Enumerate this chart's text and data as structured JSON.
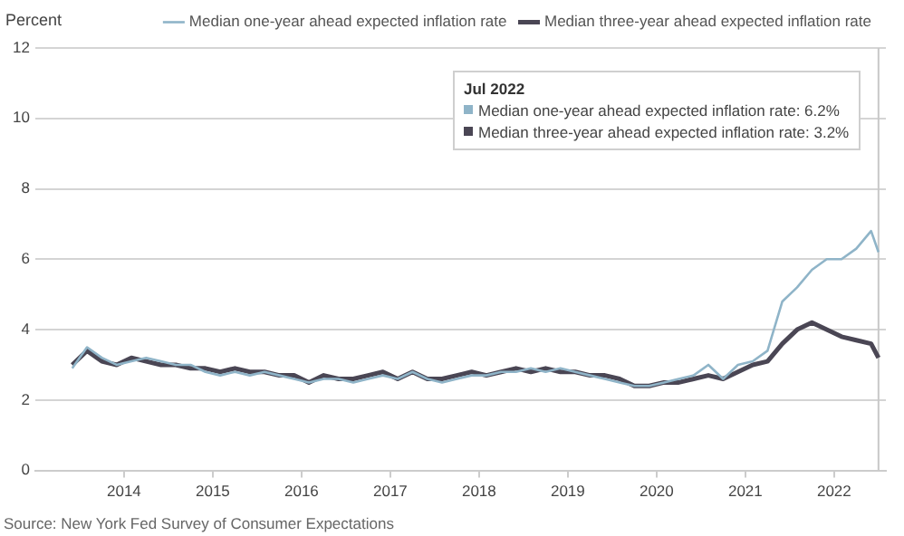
{
  "chart_data": {
    "type": "line",
    "ylabel": "Percent",
    "x": [
      "2013-06",
      "2013-08",
      "2013-10",
      "2013-12",
      "2014-02",
      "2014-04",
      "2014-06",
      "2014-08",
      "2014-10",
      "2014-12",
      "2015-02",
      "2015-04",
      "2015-06",
      "2015-08",
      "2015-10",
      "2015-12",
      "2016-02",
      "2016-04",
      "2016-06",
      "2016-08",
      "2016-10",
      "2016-12",
      "2017-02",
      "2017-04",
      "2017-06",
      "2017-08",
      "2017-10",
      "2017-12",
      "2018-02",
      "2018-04",
      "2018-06",
      "2018-08",
      "2018-10",
      "2018-12",
      "2019-02",
      "2019-04",
      "2019-06",
      "2019-08",
      "2019-10",
      "2019-12",
      "2020-02",
      "2020-04",
      "2020-06",
      "2020-08",
      "2020-10",
      "2020-12",
      "2021-02",
      "2021-04",
      "2021-06",
      "2021-08",
      "2021-10",
      "2021-12",
      "2022-02",
      "2022-04",
      "2022-06",
      "2022-07"
    ],
    "series": [
      {
        "name": "Median one-year ahead expected inflation rate",
        "color": "#8fb4c8",
        "values": [
          2.9,
          3.5,
          3.2,
          3.0,
          3.1,
          3.2,
          3.1,
          3.0,
          3.0,
          2.8,
          2.7,
          2.8,
          2.7,
          2.8,
          2.7,
          2.6,
          2.5,
          2.6,
          2.6,
          2.5,
          2.6,
          2.7,
          2.6,
          2.8,
          2.6,
          2.5,
          2.6,
          2.7,
          2.7,
          2.8,
          2.8,
          2.9,
          2.8,
          2.9,
          2.8,
          2.7,
          2.6,
          2.5,
          2.4,
          2.4,
          2.5,
          2.6,
          2.7,
          3.0,
          2.6,
          3.0,
          3.1,
          3.4,
          4.8,
          5.2,
          5.7,
          6.0,
          6.0,
          6.3,
          6.8,
          6.2
        ]
      },
      {
        "name": "Median three-year ahead expected inflation rate",
        "color": "#4a4654",
        "values": [
          3.0,
          3.4,
          3.1,
          3.0,
          3.2,
          3.1,
          3.0,
          3.0,
          2.9,
          2.9,
          2.8,
          2.9,
          2.8,
          2.8,
          2.7,
          2.7,
          2.5,
          2.7,
          2.6,
          2.6,
          2.7,
          2.8,
          2.6,
          2.8,
          2.6,
          2.6,
          2.7,
          2.8,
          2.7,
          2.8,
          2.9,
          2.8,
          2.9,
          2.8,
          2.8,
          2.7,
          2.7,
          2.6,
          2.4,
          2.4,
          2.5,
          2.5,
          2.6,
          2.7,
          2.6,
          2.8,
          3.0,
          3.1,
          3.6,
          4.0,
          4.2,
          4.0,
          3.8,
          3.7,
          3.6,
          3.2
        ]
      }
    ],
    "xlim": [
      "2013-01",
      "2022-08"
    ],
    "xticks": [
      "2014",
      "2015",
      "2016",
      "2017",
      "2018",
      "2019",
      "2020",
      "2021",
      "2022"
    ],
    "ylim": [
      0,
      12
    ],
    "yticks": [
      0,
      2,
      4,
      6,
      8,
      10,
      12
    ],
    "grid": "y",
    "legend": "top",
    "ref_lines": [
      {
        "axis": "x",
        "value": "2022-07",
        "color": "#c8c8c8"
      }
    ],
    "annotations": [
      "Jul 2022",
      "Median one-year ahead expected inflation rate: 6.2%",
      "Median three-year ahead expected inflation rate: 3.2%",
      "Source: New York Fed Survey of Consumer Expectations"
    ]
  }
}
